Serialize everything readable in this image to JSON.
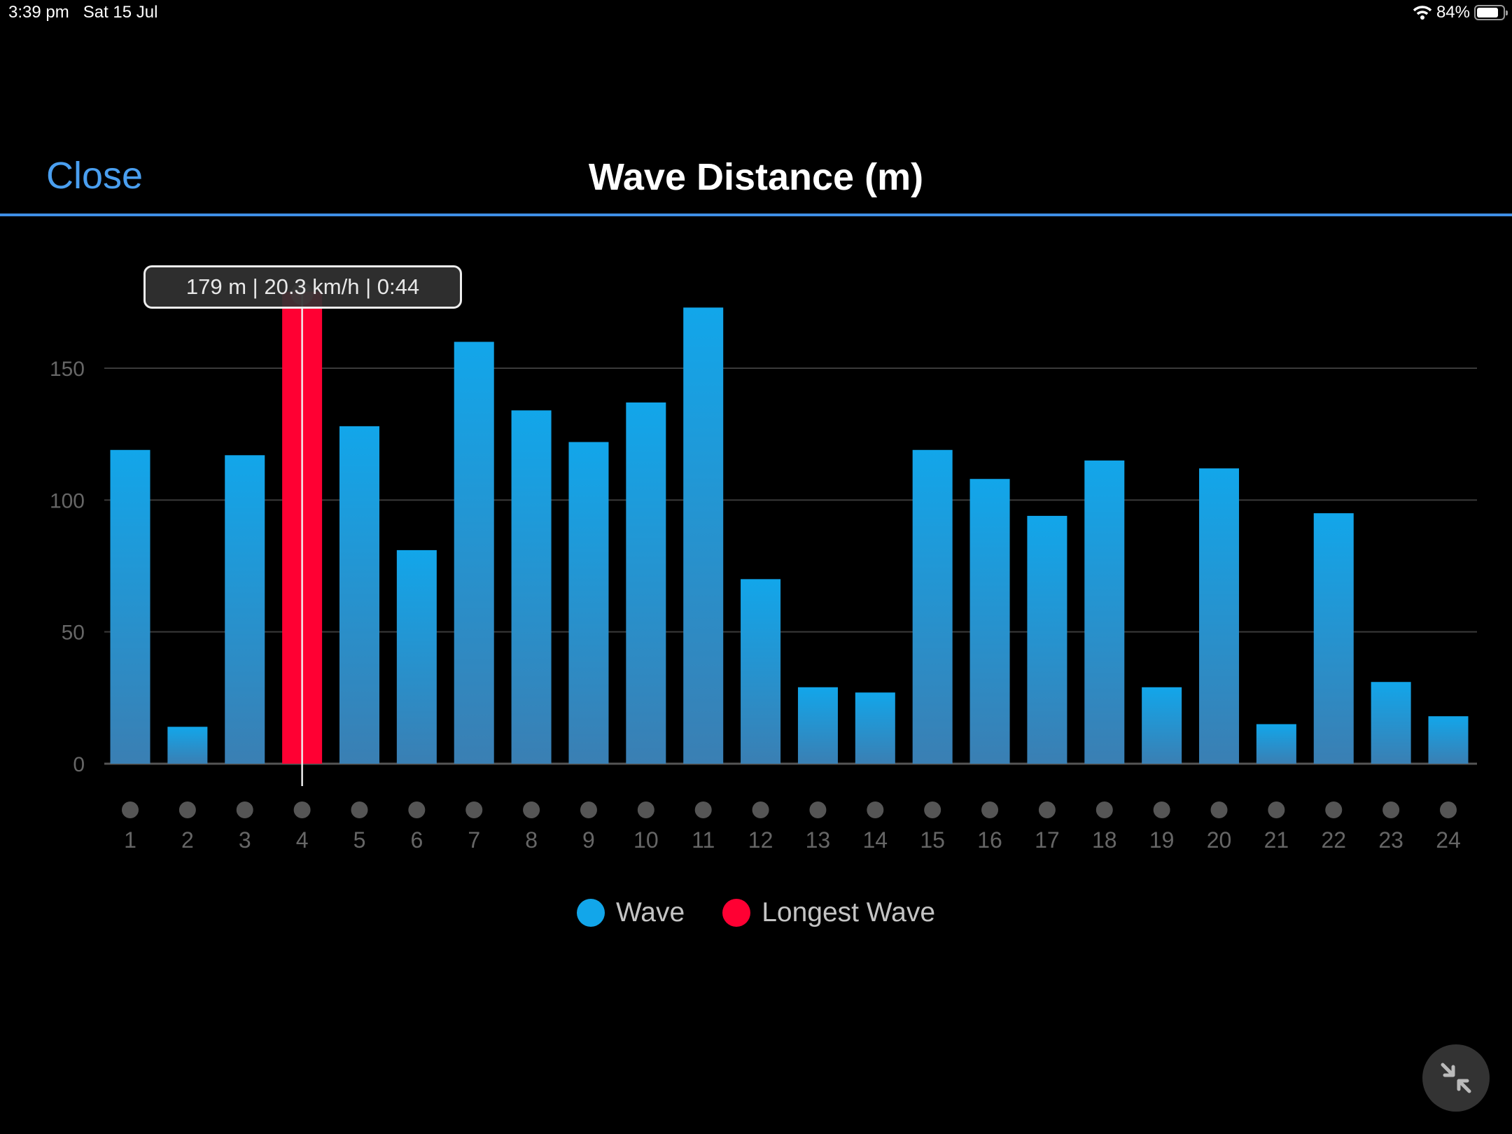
{
  "status_bar": {
    "time": "3:39 pm",
    "date": "Sat 15 Jul",
    "battery": "84%",
    "battery_level": 0.84,
    "icons": [
      "wifi-icon",
      "battery-icon"
    ]
  },
  "header": {
    "close_label": "Close",
    "title": "Wave Distance (m)",
    "accent_color": "#3f8fe6"
  },
  "tooltip": {
    "text": "179 m | 20.3 km/h | 0:44",
    "wave_index": 4
  },
  "legend": [
    {
      "label": "Wave",
      "color": "#12a6ea"
    },
    {
      "label": "Longest Wave",
      "color": "#ff0033"
    }
  ],
  "collapse_button": {
    "icon": "collapse-arrows-icon"
  },
  "chart_data": {
    "type": "bar",
    "title": "Wave Distance (m)",
    "categories": [
      "1",
      "2",
      "3",
      "4",
      "5",
      "6",
      "7",
      "8",
      "9",
      "10",
      "11",
      "12",
      "13",
      "14",
      "15",
      "16",
      "17",
      "18",
      "19",
      "20",
      "21",
      "22",
      "23",
      "24"
    ],
    "values": [
      119,
      14,
      117,
      179,
      128,
      81,
      160,
      134,
      122,
      137,
      173,
      70,
      29,
      27,
      119,
      108,
      94,
      115,
      29,
      112,
      15,
      95,
      31,
      18
    ],
    "highlight_index": 3,
    "yticks": [
      0,
      50,
      100,
      150
    ],
    "ylim": [
      0,
      180
    ],
    "grid": true,
    "legend_position": "bottom",
    "colors": {
      "wave_top": "#12a6ea",
      "wave_bottom": "#3a7fb3",
      "longest": "#ff0033"
    }
  }
}
